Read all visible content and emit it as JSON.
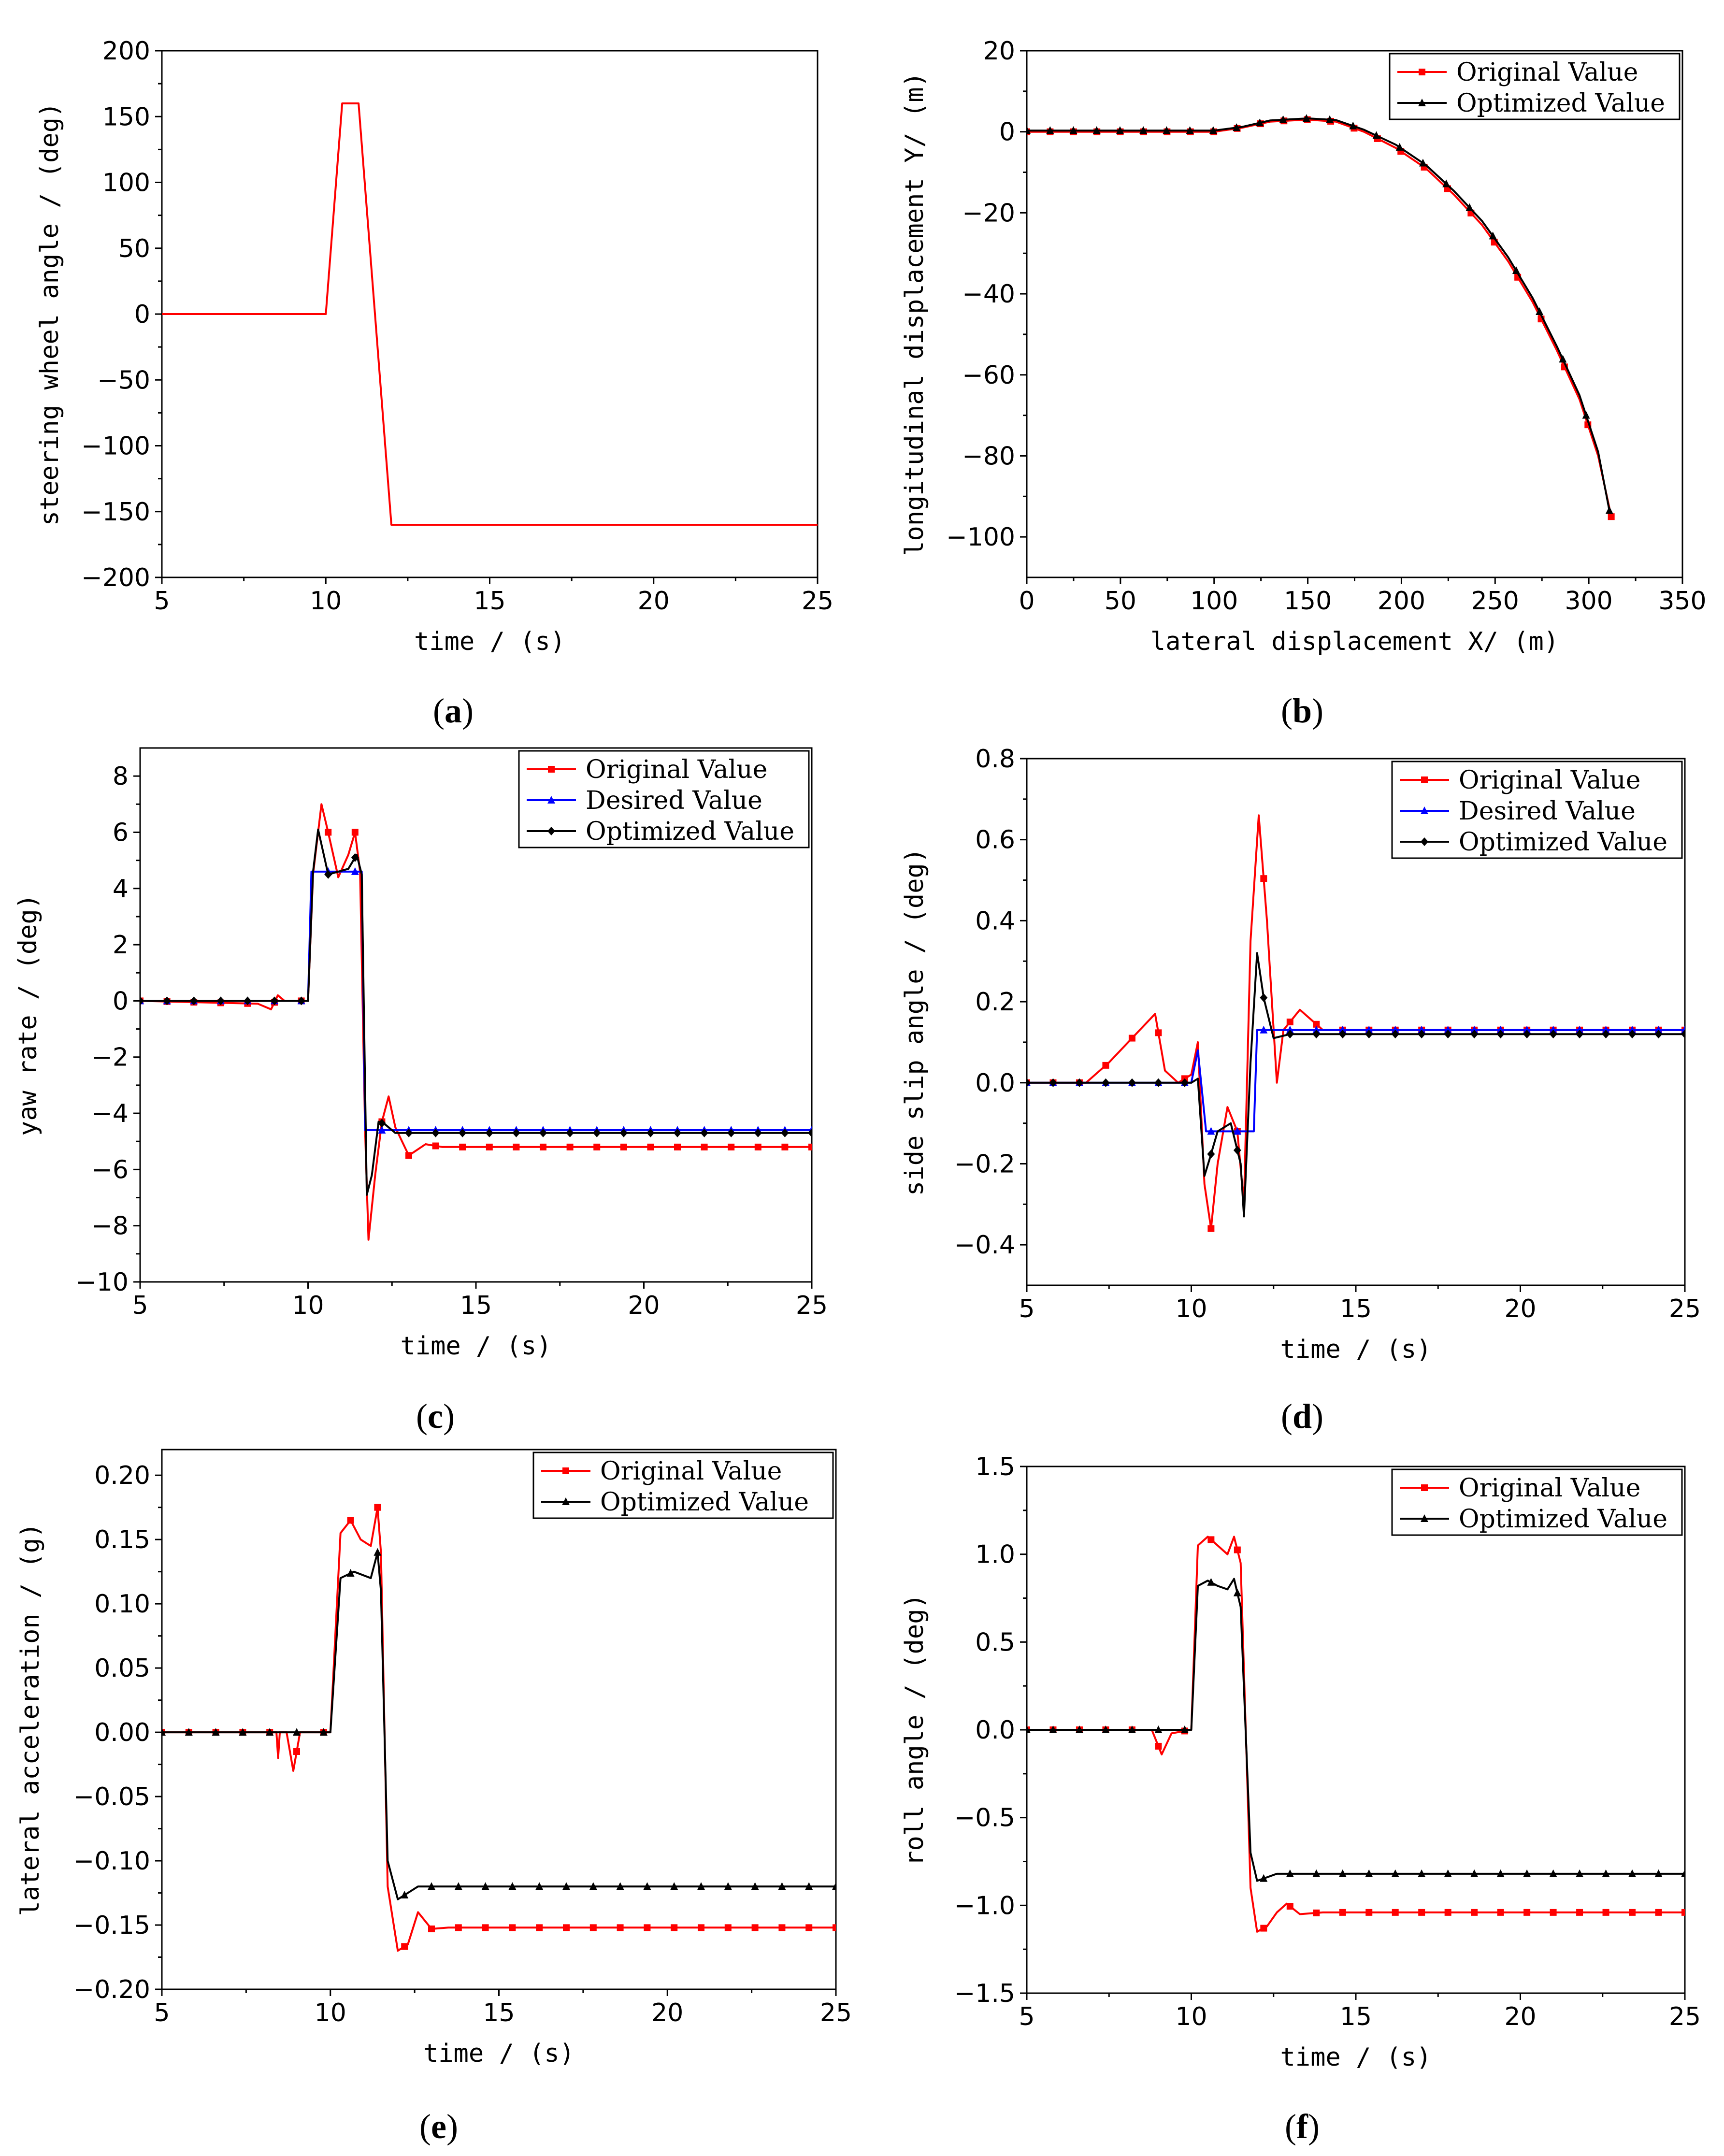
{
  "colors": {
    "original": "#ff0000",
    "desired": "#0000ff",
    "optimized": "#000000",
    "axis": "#000000"
  },
  "chart_data": [
    {
      "id": "a",
      "type": "line",
      "panel_label": "a",
      "xlabel": "time / (s)",
      "ylabel": "steering wheel angle / (deg)",
      "xlim": [
        5,
        25
      ],
      "ylim": [
        -200,
        200
      ],
      "xticks": [
        5,
        10,
        15,
        20,
        25
      ],
      "yticks": [
        -200,
        -150,
        -100,
        -50,
        0,
        50,
        100,
        150,
        200
      ],
      "ytick_labels": [
        "−200",
        "−150",
        "−100",
        "−50",
        "0",
        "50",
        "100",
        "150",
        "200"
      ],
      "legend": null,
      "series": [
        {
          "name": "steering wheel angle",
          "color": "#ff0000",
          "marker": "none",
          "x": [
            5,
            10,
            10.5,
            11,
            12,
            25
          ],
          "y": [
            0,
            0,
            160,
            160,
            -160,
            -160
          ]
        }
      ]
    },
    {
      "id": "b",
      "type": "line",
      "panel_label": "b",
      "xlabel": "lateral displacement X/ (m)",
      "ylabel": "longitudinal displacement Y/ (m)",
      "xlim": [
        0,
        350
      ],
      "ylim": [
        -110,
        20
      ],
      "xticks": [
        0,
        50,
        100,
        150,
        200,
        250,
        300,
        350
      ],
      "yticks": [
        -100,
        -80,
        -60,
        -40,
        -20,
        0,
        20
      ],
      "ytick_labels": [
        "−100",
        "−80",
        "−60",
        "−40",
        "−20",
        "0",
        "20"
      ],
      "legend": "top-right",
      "series": [
        {
          "name": "Original Value",
          "color": "#ff0000",
          "marker": "square",
          "x": [
            0,
            5,
            12,
            20,
            28,
            40,
            50,
            65,
            80,
            100,
            115,
            130,
            150,
            165,
            180,
            197,
            213,
            228,
            243,
            257,
            270,
            283,
            295,
            305,
            312
          ],
          "y": [
            0,
            0,
            0,
            0,
            0,
            0,
            0,
            0,
            0,
            0,
            1,
            2.5,
            3,
            2.5,
            0,
            -4,
            -9,
            -15.5,
            -23,
            -32,
            -42,
            -54,
            -66,
            -80,
            -95
          ]
        },
        {
          "name": "Optimized Value",
          "color": "#000000",
          "marker": "triangle",
          "x": [
            0,
            5,
            12,
            20,
            28,
            40,
            50,
            65,
            80,
            100,
            115,
            130,
            150,
            165,
            180,
            197,
            213,
            228,
            243,
            257,
            270,
            283,
            295,
            305,
            311
          ],
          "y": [
            0.3,
            0.3,
            0.3,
            0.3,
            0.3,
            0.3,
            0.3,
            0.3,
            0.3,
            0.3,
            1.2,
            2.8,
            3.3,
            2.9,
            0.5,
            -3.2,
            -8.2,
            -14.6,
            -22,
            -31,
            -41,
            -53,
            -65,
            -79,
            -93.5
          ]
        }
      ]
    },
    {
      "id": "c",
      "type": "line",
      "panel_label": "c",
      "xlabel": "time / (s)",
      "ylabel": "yaw rate / (deg)",
      "xlim": [
        5,
        25
      ],
      "ylim": [
        -10,
        9
      ],
      "xticks": [
        5,
        10,
        15,
        20,
        25
      ],
      "yticks": [
        -10,
        -8,
        -6,
        -4,
        -2,
        0,
        2,
        4,
        6,
        8
      ],
      "ytick_labels": [
        "−10",
        "−8",
        "−6",
        "−4",
        "−2",
        "0",
        "2",
        "4",
        "6",
        "8"
      ],
      "legend": "top-right",
      "series": [
        {
          "name": "Original Value",
          "color": "#ff0000",
          "marker": "square",
          "x": [
            5,
            8.5,
            8.9,
            9.1,
            9.3,
            10,
            10.15,
            10.4,
            10.6,
            10.9,
            11.2,
            11.4,
            11.55,
            11.7,
            11.8,
            12,
            12.2,
            12.4,
            12.6,
            13,
            13.5,
            14,
            25
          ],
          "y": [
            0,
            -0.1,
            -0.3,
            0.2,
            0,
            0,
            4.5,
            7,
            6,
            4.4,
            5.2,
            6,
            4.6,
            -4.6,
            -8.5,
            -6.2,
            -4.3,
            -3.4,
            -4.5,
            -5.5,
            -5.1,
            -5.2,
            -5.2
          ]
        },
        {
          "name": "Desired Value",
          "color": "#0000ff",
          "marker": "triangle",
          "x": [
            5,
            10,
            10.1,
            11.6,
            11.7,
            25
          ],
          "y": [
            0,
            0,
            4.6,
            4.6,
            -4.6,
            -4.6
          ]
        },
        {
          "name": "Optimized Value",
          "color": "#000000",
          "marker": "diamond",
          "x": [
            5,
            10,
            10.15,
            10.3,
            10.6,
            10.9,
            11.2,
            11.45,
            11.6,
            11.75,
            11.9,
            12.1,
            12.3,
            12.6,
            13,
            25
          ],
          "y": [
            0,
            0,
            4.6,
            6.1,
            4.5,
            4.6,
            4.7,
            5.2,
            4.5,
            -6.9,
            -6.2,
            -4.3,
            -4.4,
            -4.7,
            -4.7,
            -4.7
          ]
        }
      ]
    },
    {
      "id": "d",
      "type": "line",
      "panel_label": "d",
      "xlabel": "time / (s)",
      "ylabel": "side slip angle / (deg)",
      "xlim": [
        5,
        25
      ],
      "ylim": [
        -0.5,
        0.8
      ],
      "xticks": [
        5,
        10,
        15,
        20,
        25
      ],
      "yticks": [
        -0.4,
        -0.2,
        0.0,
        0.2,
        0.4,
        0.6,
        0.8
      ],
      "ytick_labels": [
        "−0.4",
        "−0.2",
        "0.0",
        "0.2",
        "0.4",
        "0.6",
        "0.8"
      ],
      "legend": "top-right",
      "series": [
        {
          "name": "Original Value",
          "color": "#ff0000",
          "marker": "square",
          "x": [
            5,
            6.8,
            7.5,
            8.2,
            8.9,
            9.2,
            9.6,
            10,
            10.2,
            10.4,
            10.6,
            10.8,
            11.1,
            11.4,
            11.6,
            11.8,
            12.05,
            12.3,
            12.6,
            12.8,
            13.3,
            14,
            25
          ],
          "y": [
            0,
            0,
            0.05,
            0.11,
            0.17,
            0.03,
            0,
            0.02,
            0.1,
            -0.25,
            -0.36,
            -0.2,
            -0.06,
            -0.12,
            -0.3,
            0.35,
            0.66,
            0.4,
            0,
            0.13,
            0.18,
            0.13,
            0.13
          ]
        },
        {
          "name": "Desired Value",
          "color": "#0000ff",
          "marker": "triangle",
          "x": [
            5,
            10,
            10.2,
            10.45,
            11.9,
            12.0,
            25
          ],
          "y": [
            0,
            0,
            0.08,
            -0.12,
            -0.12,
            0.13,
            0.13
          ]
        },
        {
          "name": "Optimized Value",
          "color": "#000000",
          "marker": "diamond",
          "x": [
            5,
            10,
            10.2,
            10.4,
            10.55,
            10.8,
            11.2,
            11.5,
            11.6,
            11.8,
            12.0,
            12.2,
            12.5,
            13,
            25
          ],
          "y": [
            0,
            0,
            0.01,
            -0.23,
            -0.19,
            -0.12,
            -0.1,
            -0.2,
            -0.33,
            0.05,
            0.32,
            0.21,
            0.11,
            0.12,
            0.12
          ]
        }
      ]
    },
    {
      "id": "e",
      "type": "line",
      "panel_label": "e",
      "xlabel": "time / (s)",
      "ylabel": "lateral acceleration / (g)",
      "xlim": [
        5,
        25
      ],
      "ylim": [
        -0.2,
        0.22
      ],
      "xticks": [
        5,
        10,
        15,
        20,
        25
      ],
      "yticks": [
        -0.2,
        -0.15,
        -0.1,
        -0.05,
        0.0,
        0.05,
        0.1,
        0.15,
        0.2
      ],
      "ytick_labels": [
        "−0.20",
        "−0.15",
        "−0.10",
        "−0.05",
        "0.00",
        "0.05",
        "0.10",
        "0.15",
        "0.20"
      ],
      "legend": "top-right",
      "series": [
        {
          "name": "Original Value",
          "color": "#ff0000",
          "marker": "square",
          "x": [
            5,
            8.4,
            8.45,
            8.5,
            8.7,
            8.9,
            9.0,
            9.1,
            10,
            10.3,
            10.6,
            10.9,
            11.2,
            11.4,
            11.5,
            11.7,
            12,
            12.3,
            12.6,
            13,
            13.5,
            25
          ],
          "y": [
            0,
            0,
            -0.02,
            0,
            0,
            -0.03,
            -0.015,
            0,
            0,
            0.155,
            0.165,
            0.15,
            0.145,
            0.175,
            0.14,
            -0.12,
            -0.17,
            -0.165,
            -0.14,
            -0.153,
            -0.152,
            -0.152
          ]
        },
        {
          "name": "Optimized Value",
          "color": "#000000",
          "marker": "triangle",
          "x": [
            5,
            10,
            10.3,
            10.7,
            11.2,
            11.4,
            11.5,
            11.7,
            12,
            12.3,
            12.6,
            13,
            25
          ],
          "y": [
            0,
            0,
            0.12,
            0.125,
            0.12,
            0.14,
            0.11,
            -0.1,
            -0.13,
            -0.125,
            -0.12,
            -0.12,
            -0.12
          ]
        }
      ]
    },
    {
      "id": "f",
      "type": "line",
      "panel_label": "f",
      "xlabel": "time / (s)",
      "ylabel": "roll angle / (deg)",
      "xlim": [
        5,
        25
      ],
      "ylim": [
        -1.5,
        1.5
      ],
      "xticks": [
        5,
        10,
        15,
        20,
        25
      ],
      "yticks": [
        -1.5,
        -1.0,
        -0.5,
        0.0,
        0.5,
        1.0,
        1.5
      ],
      "ytick_labels": [
        "−1.5",
        "−1.0",
        "−0.5",
        "0.0",
        "0.5",
        "1.0",
        "1.5"
      ],
      "legend": "top-right",
      "series": [
        {
          "name": "Original Value",
          "color": "#ff0000",
          "marker": "square",
          "x": [
            5,
            8.8,
            9.1,
            9.4,
            10,
            10.2,
            10.5,
            10.8,
            11.1,
            11.3,
            11.5,
            11.8,
            12.0,
            12.3,
            12.6,
            12.9,
            13.3,
            14,
            25
          ],
          "y": [
            0,
            0,
            -0.14,
            -0.02,
            0,
            1.05,
            1.1,
            1.05,
            1.0,
            1.1,
            0.95,
            -0.9,
            -1.15,
            -1.12,
            -1.04,
            -0.99,
            -1.05,
            -1.04,
            -1.04
          ]
        },
        {
          "name": "Optimized Value",
          "color": "#000000",
          "marker": "triangle",
          "x": [
            5,
            10,
            10.2,
            10.5,
            10.8,
            11.1,
            11.3,
            11.5,
            11.8,
            12.0,
            12.3,
            12.6,
            13,
            25
          ],
          "y": [
            0,
            0,
            0.82,
            0.85,
            0.82,
            0.8,
            0.86,
            0.7,
            -0.7,
            -0.86,
            -0.84,
            -0.82,
            -0.82,
            -0.82
          ]
        }
      ]
    }
  ]
}
